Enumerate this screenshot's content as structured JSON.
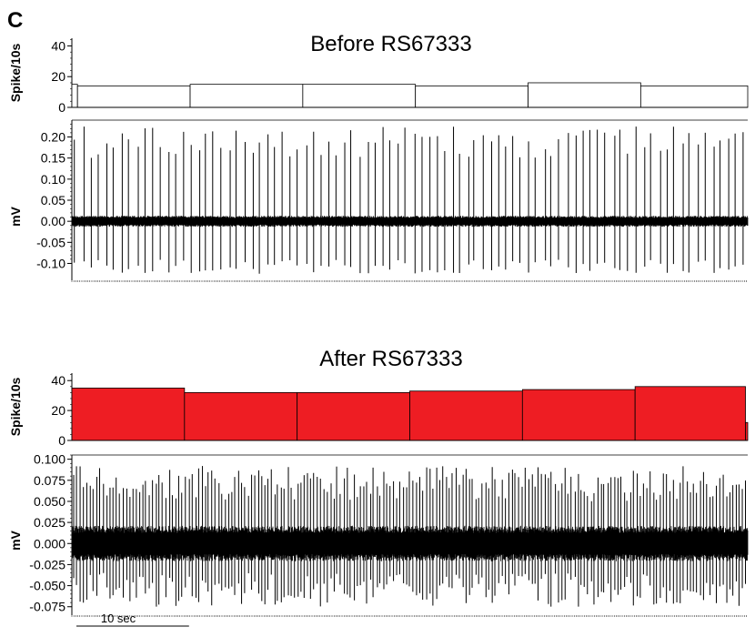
{
  "panel_label": "C",
  "scale_bar": {
    "label": "10 sec",
    "seconds": 10
  },
  "chart_data": [
    {
      "id": "before-hist",
      "type": "bar",
      "title": "Before RS67333",
      "ylabel": "Spike/10s",
      "ylim": [
        0,
        45
      ],
      "yticks": [
        {
          "v": 0,
          "label": "0"
        },
        {
          "v": 20,
          "label": "20"
        },
        {
          "v": 40,
          "label": "40"
        }
      ],
      "x_range_s": [
        0,
        60
      ],
      "bins": [
        {
          "start": 0,
          "end": 0.5,
          "value": 15
        },
        {
          "start": 0.5,
          "end": 10.5,
          "value": 14
        },
        {
          "start": 10.5,
          "end": 20.5,
          "value": 15
        },
        {
          "start": 20.5,
          "end": 30.5,
          "value": 15
        },
        {
          "start": 30.5,
          "end": 40.5,
          "value": 14
        },
        {
          "start": 40.5,
          "end": 50.5,
          "value": 16
        },
        {
          "start": 50.5,
          "end": 60,
          "value": 14
        }
      ],
      "fill": "#ffffff",
      "stroke": "#000000"
    },
    {
      "id": "before-trace",
      "type": "line",
      "ylabel": "mV",
      "ylim": [
        -0.14,
        0.24
      ],
      "yticks": [
        {
          "v": -0.1,
          "label": "-0.10"
        },
        {
          "v": -0.05,
          "label": "-0.05"
        },
        {
          "v": 0.0,
          "label": "0.00"
        },
        {
          "v": 0.05,
          "label": "0.05"
        },
        {
          "v": 0.1,
          "label": "0.10"
        },
        {
          "v": 0.15,
          "label": "0.15"
        },
        {
          "v": 0.2,
          "label": "0.20"
        }
      ],
      "x_range_s": [
        0,
        60
      ],
      "noise_amplitude_mv": 0.013,
      "approx_spike_count": 88,
      "spike_peak_mv": [
        0.15,
        0.225
      ],
      "spike_trough_mv": [
        -0.125,
        -0.09
      ],
      "color": "#000000"
    },
    {
      "id": "after-hist",
      "type": "bar",
      "title": "After RS67333",
      "ylabel": "Spike/10s",
      "ylim": [
        0,
        45
      ],
      "yticks": [
        {
          "v": 0,
          "label": "0"
        },
        {
          "v": 20,
          "label": "20"
        },
        {
          "v": 40,
          "label": "40"
        }
      ],
      "x_range_s": [
        0,
        60
      ],
      "bins": [
        {
          "start": 0,
          "end": 10,
          "value": 35
        },
        {
          "start": 10,
          "end": 20,
          "value": 32
        },
        {
          "start": 20,
          "end": 30,
          "value": 32
        },
        {
          "start": 30,
          "end": 40,
          "value": 33
        },
        {
          "start": 40,
          "end": 50,
          "value": 34
        },
        {
          "start": 50,
          "end": 59.8,
          "value": 36
        },
        {
          "start": 59.8,
          "end": 60,
          "value": 12
        }
      ],
      "fill": "#ee1d23",
      "stroke": "#000000"
    },
    {
      "id": "after-trace",
      "type": "line",
      "ylabel": "mV",
      "ylim": [
        -0.085,
        0.105
      ],
      "yticks": [
        {
          "v": -0.075,
          "label": "-0.075"
        },
        {
          "v": -0.05,
          "label": "-0.050"
        },
        {
          "v": -0.025,
          "label": "-0.025"
        },
        {
          "v": 0.0,
          "label": "0.000"
        },
        {
          "v": 0.025,
          "label": "0.025"
        },
        {
          "v": 0.05,
          "label": "0.050"
        },
        {
          "v": 0.075,
          "label": "0.075"
        },
        {
          "v": 0.1,
          "label": "0.100"
        }
      ],
      "x_range_s": [
        0,
        60
      ],
      "noise_amplitude_mv": 0.021,
      "approx_spike_count": 205,
      "spike_peak_mv": [
        0.05,
        0.092
      ],
      "spike_trough_mv": [
        -0.075,
        -0.035
      ],
      "color": "#000000"
    }
  ]
}
